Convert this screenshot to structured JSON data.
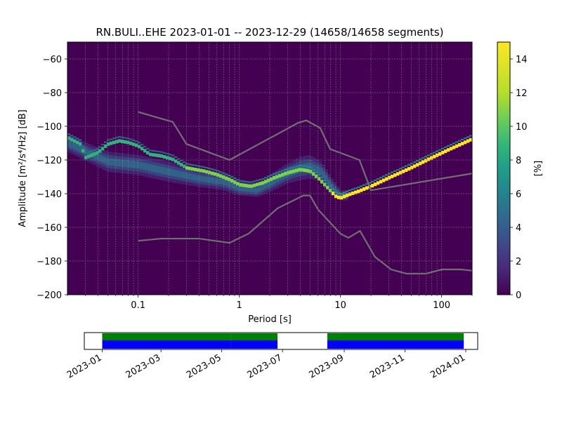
{
  "chart_data": [
    {
      "type": "heatmap",
      "title": "RN.BULI..EHE   2023-01-01 -- 2023-12-29  (14658/14658 segments)",
      "xlabel": "Period [s]",
      "ylabel": "Amplitude [m²/s⁴/Hz] [dB]",
      "x_scale": "log",
      "xlim": [
        0.02,
        200
      ],
      "ylim": [
        -200,
        -50
      ],
      "x_ticks": [
        0.1,
        1,
        10,
        100
      ],
      "x_tick_labels": [
        "0.1",
        "1",
        "10",
        "100"
      ],
      "y_ticks": [
        -60,
        -80,
        -100,
        -120,
        -140,
        -160,
        -180,
        -200
      ],
      "y_tick_labels": [
        "−60",
        "−80",
        "−100",
        "−120",
        "−140",
        "−160",
        "−180",
        "−200"
      ],
      "grid": true,
      "colorbar": {
        "label": "[%]",
        "range": [
          0,
          15
        ],
        "ticks": [
          0,
          2,
          4,
          6,
          8,
          10,
          12,
          14
        ],
        "tick_labels": [
          "0",
          "2",
          "4",
          "6",
          "8",
          "10",
          "12",
          "14"
        ],
        "colormap": "viridis"
      },
      "mode_curve": {
        "name": "",
        "x": [
          0.02,
          0.027,
          0.03,
          0.04,
          0.05,
          0.065,
          0.08,
          0.1,
          0.13,
          0.17,
          0.22,
          0.3,
          0.45,
          0.6,
          0.8,
          1.0,
          1.3,
          1.7,
          2.2,
          3.0,
          4.0,
          5.0,
          6.0,
          7.5,
          9.0,
          10,
          12,
          15,
          20,
          30,
          50,
          80,
          120,
          200
        ],
        "y": [
          -107,
          -111,
          -119,
          -116,
          -111,
          -109,
          -110,
          -112,
          -117,
          -118,
          -120,
          -125,
          -127,
          -129,
          -132,
          -135,
          -136,
          -134,
          -131,
          -128,
          -126,
          -127,
          -131,
          -137,
          -142,
          -143,
          -141,
          -139,
          -136,
          -131,
          -125,
          -119,
          -114,
          -108
        ]
      },
      "background_band": {
        "x": [
          0.02,
          0.05,
          0.1,
          0.2,
          0.4,
          0.7,
          1.0,
          1.5,
          2.0,
          3.0,
          4.0,
          5.0,
          6.5,
          8.0,
          10,
          12
        ],
        "y": [
          -110,
          -121,
          -123,
          -127,
          -131,
          -133,
          -137,
          -138,
          -134,
          -128,
          -125,
          -124,
          -127,
          -135,
          -141,
          -141
        ],
        "spread": [
          5,
          6,
          6,
          6,
          5,
          5,
          4,
          4,
          5,
          6,
          7,
          7,
          6,
          5,
          3,
          3
        ]
      },
      "noise_models": [
        {
          "name": "",
          "x": [
            0.1,
            0.22,
            0.3,
            0.8,
            3.8,
            4.6,
            6.3,
            7.9,
            15.4,
            20,
            200
          ],
          "y": [
            -91.5,
            -97.4,
            -110.5,
            -120,
            -98,
            -96.5,
            -101,
            -113.5,
            -120,
            -138,
            -128
          ]
        },
        {
          "name": "",
          "x": [
            0.1,
            0.17,
            0.4,
            0.8,
            1.24,
            2.4,
            4.3,
            5.0,
            6.0,
            10,
            12,
            15.6,
            21.9,
            31.6,
            45,
            70,
            101,
            154,
            200
          ],
          "y": [
            -168,
            -166.7,
            -166.7,
            -169.2,
            -163.7,
            -148.6,
            -141.1,
            -141.1,
            -149.4,
            -163.8,
            -166.2,
            -162.1,
            -177.5,
            -185,
            -187.5,
            -187.5,
            -185,
            -185,
            -185.7
          ]
        }
      ]
    },
    {
      "type": "timeline",
      "x_ticks": [
        "2023-01",
        "2023-03",
        "2023-05",
        "2023-07",
        "2023-09",
        "2023-11",
        "2024-01"
      ],
      "date_range": [
        "2022-12-14",
        "2024-01-13"
      ],
      "data_segments": [
        {
          "start": "2023-01-01",
          "end": "2023-05-09"
        },
        {
          "start": "2023-05-10",
          "end": "2023-06-25"
        },
        {
          "start": "2023-08-15",
          "end": "2023-12-29"
        }
      ],
      "colors": {
        "available": "#0000ff",
        "used": "#008000",
        "gap_line": "#ffffff"
      }
    }
  ]
}
